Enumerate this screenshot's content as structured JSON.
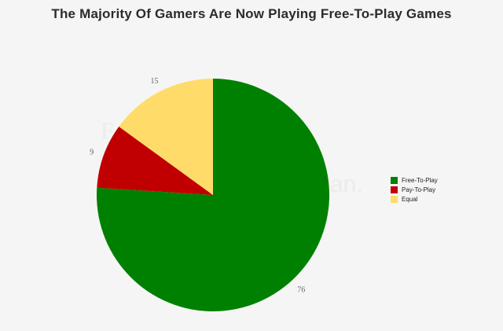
{
  "chart_data": {
    "type": "pie",
    "title": "The Majority Of Gamers Are Now Playing Free-To-Play Games",
    "slices": [
      {
        "label": "Free-To-Play",
        "value": 76,
        "color": "#008000"
      },
      {
        "label": "Pay-To-Play",
        "value": 9,
        "color": "#c00000"
      },
      {
        "label": "Equal",
        "value": 15,
        "color": "#ffdc6a"
      }
    ],
    "start": "12 o'clock",
    "direction": "clockwise",
    "legend_position": "right"
  }
}
